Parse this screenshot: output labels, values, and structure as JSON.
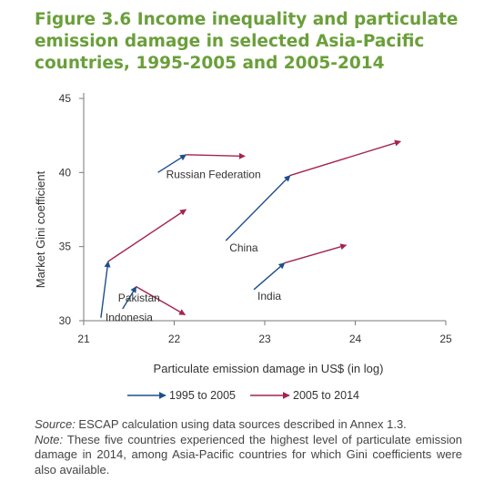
{
  "figure": {
    "title_lines": [
      "Figure 3.6 Income inequality and particulate",
      "emission damage in selected Asia-Pacific",
      "countries, 1995-2005 and 2005-2014"
    ],
    "title_color": "#6a9f3a"
  },
  "chart_data": {
    "type": "line",
    "title": "Figure 3.6 Income inequality and particulate emission damage in selected Asia-Pacific countries, 1995-2005 and 2005-2014",
    "xlabel": "Particulate emission damage in US$ (in log)",
    "ylabel": "Market Gini coefficient",
    "xlim": [
      21,
      25
    ],
    "ylim": [
      30,
      45
    ],
    "xticks": [
      "21",
      "22",
      "23",
      "24",
      "25"
    ],
    "yticks": [
      "30",
      "35",
      "40",
      "45"
    ],
    "grid": false,
    "legend_position": "bottom",
    "series": [
      {
        "name": "1995 to 2005",
        "color": "#1f4e8c"
      },
      {
        "name": "2005 to 2014",
        "color": "#a3244f"
      }
    ],
    "countries": [
      {
        "name": "Russian Federation",
        "points": [
          [
            21.82,
            40.0
          ],
          [
            22.13,
            41.2
          ],
          [
            22.78,
            41.1
          ]
        ]
      },
      {
        "name": "China",
        "points": [
          [
            22.57,
            35.4
          ],
          [
            23.28,
            39.8
          ],
          [
            24.5,
            42.1
          ]
        ]
      },
      {
        "name": "India",
        "points": [
          [
            22.88,
            32.1
          ],
          [
            23.22,
            33.9
          ],
          [
            23.9,
            35.1
          ]
        ]
      },
      {
        "name": "Pakistan",
        "points": [
          [
            21.43,
            30.8
          ],
          [
            21.58,
            32.3
          ],
          [
            22.12,
            30.4
          ]
        ]
      },
      {
        "name": "Indonesia",
        "points": [
          [
            21.19,
            30.2
          ],
          [
            21.27,
            34.0
          ],
          [
            22.13,
            37.5
          ]
        ]
      }
    ]
  },
  "notes": {
    "source_label": "Source:",
    "source_text": " ESCAP calculation using data sources described in Annex 1.3.",
    "note_label": "Note:",
    "note_text": " These five countries experienced the highest level of particulate emission damage in 2014, among Asia-Pacific countries for which Gini coefficients were also available."
  }
}
